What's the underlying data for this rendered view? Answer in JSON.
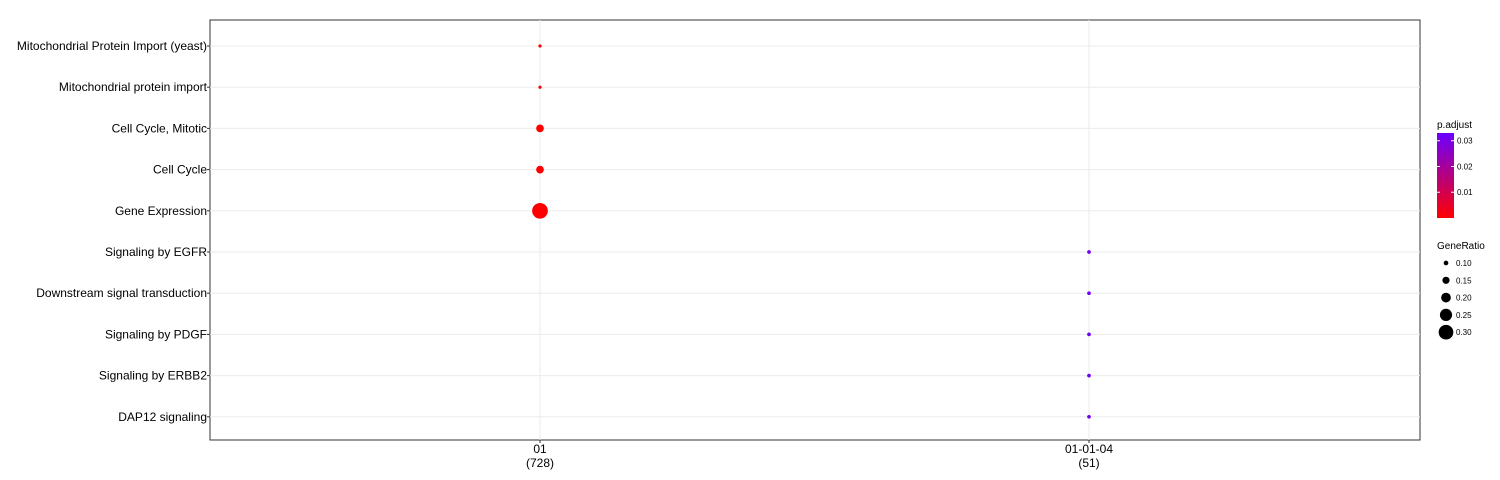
{
  "chart_data": {
    "type": "scatter",
    "title": "",
    "xlabel": "",
    "ylabel": "",
    "x_categories": [
      {
        "label": "01",
        "count": "(728)"
      },
      {
        "label": "01-01-04",
        "count": "(51)"
      }
    ],
    "y_categories": [
      "Mitochondrial Protein Import (yeast)",
      "Mitochondrial protein import",
      "Cell Cycle, Mitotic",
      "Cell Cycle",
      "Gene Expression",
      "Signaling by EGFR",
      "Downstream signal transduction",
      "Signaling by PDGF",
      "Signaling by ERBB2",
      "DAP12 signaling"
    ],
    "points": [
      {
        "x": "01",
        "y": "Mitochondrial Protein Import (yeast)",
        "gene_ratio": 0.07,
        "p_adjust": 0.0001
      },
      {
        "x": "01",
        "y": "Mitochondrial protein import",
        "gene_ratio": 0.07,
        "p_adjust": 0.0001
      },
      {
        "x": "01",
        "y": "Cell Cycle, Mitotic",
        "gene_ratio": 0.16,
        "p_adjust": 0.0001
      },
      {
        "x": "01",
        "y": "Cell Cycle",
        "gene_ratio": 0.16,
        "p_adjust": 0.0001
      },
      {
        "x": "01",
        "y": "Gene Expression",
        "gene_ratio": 0.32,
        "p_adjust": 0.0001
      },
      {
        "x": "01-01-04",
        "y": "Signaling by EGFR",
        "gene_ratio": 0.08,
        "p_adjust": 0.032
      },
      {
        "x": "01-01-04",
        "y": "Downstream signal transduction",
        "gene_ratio": 0.08,
        "p_adjust": 0.032
      },
      {
        "x": "01-01-04",
        "y": "Signaling by PDGF",
        "gene_ratio": 0.08,
        "p_adjust": 0.032
      },
      {
        "x": "01-01-04",
        "y": "Signaling by ERBB2",
        "gene_ratio": 0.08,
        "p_adjust": 0.032
      },
      {
        "x": "01-01-04",
        "y": "DAP12 signaling",
        "gene_ratio": 0.08,
        "p_adjust": 0.032
      }
    ],
    "color_legend": {
      "title": "p.adjust",
      "low_color": "#ff0000",
      "high_color": "#6a00ff",
      "range": [
        0.0,
        0.033
      ],
      "ticks": [
        0.01,
        0.02,
        0.03
      ],
      "tick_labels": [
        "0.01",
        "0.02",
        "0.03"
      ]
    },
    "size_legend": {
      "title": "GeneRatio",
      "values": [
        0.1,
        0.15,
        0.2,
        0.25,
        0.3
      ],
      "labels": [
        "0.10",
        "0.15",
        "0.20",
        "0.25",
        "0.30"
      ]
    },
    "grid": true,
    "legend_position": "right"
  }
}
